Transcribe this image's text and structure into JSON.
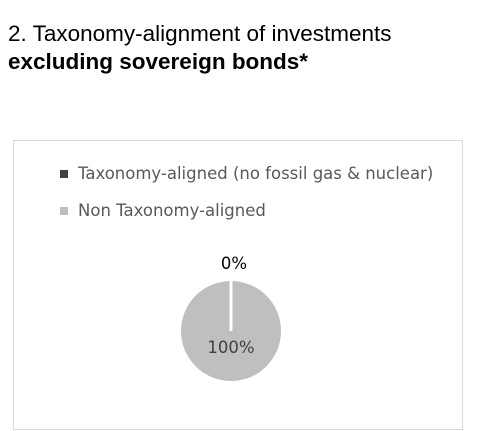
{
  "heading": {
    "line1": "2. Taxonomy-alignment of investments",
    "line2": "excluding sovereign bonds*"
  },
  "colors": {
    "aligned": "#404040",
    "non_aligned": "#bfbfbf",
    "legend_text": "#595959",
    "label_zero": "#000000",
    "label_hundred": "#404040",
    "frame_border": "#d9d9d9"
  },
  "chart_data": {
    "type": "pie",
    "legend_position": "top",
    "series": [
      {
        "name": "Taxonomy-aligned (no fossil gas & nuclear)",
        "value": 0,
        "label": "0%"
      },
      {
        "name": "Non Taxonomy-aligned",
        "value": 100,
        "label": "100%"
      }
    ]
  }
}
